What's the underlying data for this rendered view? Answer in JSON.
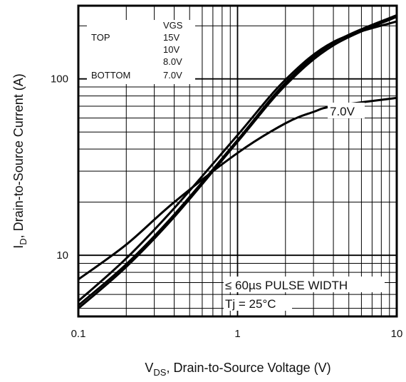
{
  "chart_data": {
    "type": "line",
    "xlabel": {
      "prefix": "V",
      "subscript": "DS",
      "rest": ", Drain-to-Source Voltage (V)"
    },
    "ylabel": {
      "prefix": "I",
      "subscript": "D",
      "rest": ", Drain-to-Source Current (A)"
    },
    "x_scale": "log",
    "y_scale": "log",
    "xlim": [
      0.1,
      10
    ],
    "ylim": [
      4.5,
      260
    ],
    "grid": true,
    "x_ticks": [
      {
        "value": 0.1,
        "label": "0.1"
      },
      {
        "value": 1,
        "label": "1"
      },
      {
        "value": 10,
        "label": "10"
      }
    ],
    "y_ticks": [
      {
        "value": 10,
        "label": "10"
      },
      {
        "value": 100,
        "label": "100"
      }
    ],
    "legend": {
      "placement": "top-left",
      "header": "VGS",
      "top_label": "TOP",
      "bottom_label": "BOTTOM",
      "entries": [
        "15V",
        "10V",
        "8.0V",
        "7.0V"
      ]
    },
    "series": [
      {
        "name": "15V",
        "x": [
          0.1,
          0.2,
          0.4,
          1,
          2,
          4,
          10
        ],
        "y": [
          5.0,
          8.6,
          16.5,
          44,
          92,
          155,
          225
        ]
      },
      {
        "name": "10V",
        "x": [
          0.1,
          0.2,
          0.4,
          1,
          2,
          4,
          10
        ],
        "y": [
          5.2,
          8.9,
          17,
          45,
          95,
          160,
          230
        ]
      },
      {
        "name": "8.0V",
        "x": [
          0.1,
          0.2,
          0.4,
          1,
          2,
          4,
          10
        ],
        "y": [
          5.5,
          9.6,
          18.5,
          48,
          99,
          162,
          212
        ]
      },
      {
        "name": "7.0V",
        "x": [
          0.1,
          0.2,
          0.4,
          1,
          2,
          3,
          4,
          10
        ],
        "y": [
          7.3,
          11.5,
          20,
          38,
          56,
          65,
          70,
          78
        ]
      }
    ],
    "annotations": [
      {
        "text": "7.0V",
        "at_series": "7.0V"
      },
      {
        "text": "≤ 60µs PULSE WIDTH"
      },
      {
        "text": "Tj = 25°C"
      }
    ]
  }
}
